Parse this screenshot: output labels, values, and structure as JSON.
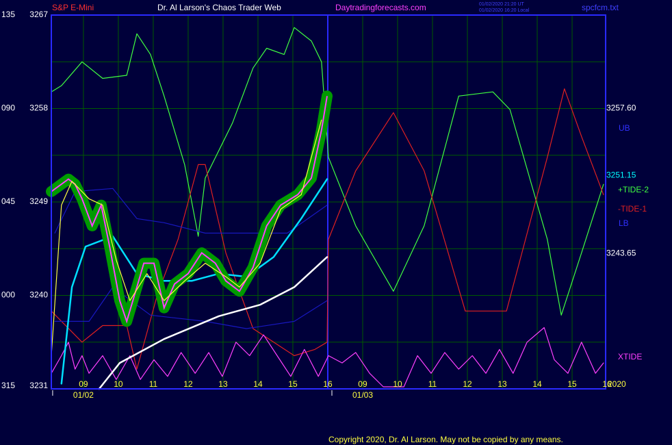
{
  "chart_data": {
    "type": "line",
    "symbol": "S&P E-Mini",
    "title": "Dr. Al Larson's Chaos Trader Web",
    "website": "Daytradingforecasts.com",
    "timestamps": [
      "01/02/2020 21:20 UT",
      "01/02/2020 16:20 Local"
    ],
    "file": "spcfcm.txt",
    "copyright": "Copyright 2020, Dr. Al Larson. May not be copied by any means.",
    "year_label": "2020",
    "xlim": [
      0.08,
      15.96
    ],
    "xticks": [
      {
        "value": 1,
        "label": "09"
      },
      {
        "value": 2,
        "label": "10"
      },
      {
        "value": 3,
        "label": "11"
      },
      {
        "value": 4,
        "label": "12"
      },
      {
        "value": 5,
        "label": "13"
      },
      {
        "value": 6,
        "label": "14"
      },
      {
        "value": 7,
        "label": "15"
      },
      {
        "value": 8,
        "label": "16"
      },
      {
        "value": 9,
        "label": "09"
      },
      {
        "value": 10,
        "label": "10"
      },
      {
        "value": 11,
        "label": "11"
      },
      {
        "value": 12,
        "label": "12"
      },
      {
        "value": 13,
        "label": "13"
      },
      {
        "value": 14,
        "label": "14"
      },
      {
        "value": 15,
        "label": "15"
      },
      {
        "value": 16,
        "label": "16"
      }
    ],
    "date_labels": [
      {
        "value": 1,
        "label": "01/02"
      },
      {
        "value": 9,
        "label": "01/03"
      }
    ],
    "day_break": 8,
    "ylim": [
      3231,
      3267
    ],
    "yticks": [
      3231,
      3240,
      3249,
      3258,
      3267
    ],
    "minor_yticks": [
      3235.5,
      3244.5,
      3253.5,
      3262.5
    ],
    "y2lim": [
      -45,
      135
    ],
    "y2ticks": [
      {
        "value": -45,
        "label": "315"
      },
      {
        "value": 0,
        "label": "000"
      },
      {
        "value": 45,
        "label": "045"
      },
      {
        "value": 90,
        "label": "090"
      },
      135
    ],
    "grid": true,
    "right_values": [
      {
        "value": 3257.6,
        "label": "3257.60",
        "color": "#ffffff"
      },
      {
        "value": 3251.15,
        "label": "3251.15",
        "color": "#00ffff"
      },
      {
        "value": 3243.65,
        "label": "3243.65",
        "color": "#ffffff"
      }
    ],
    "series": [
      {
        "name": "+TIDE-2",
        "color": "#40ff40",
        "x": [
          0.08,
          0.37,
          0.96,
          1.55,
          2.24,
          2.53,
          2.92,
          3.31,
          3.9,
          4.29,
          4.49,
          5.27,
          5.86,
          6.25,
          6.75,
          7.04,
          7.53,
          7.82,
          8.02,
          8.8,
          9.88,
          10.76,
          11.75,
          12.73,
          13.22,
          14.29,
          14.69,
          15.27,
          15.9
        ],
        "values": [
          3259.6,
          3260.2,
          3262.5,
          3260.9,
          3261.2,
          3265.2,
          3263.2,
          3259.2,
          3252.6,
          3245.7,
          3251.3,
          3256.6,
          3261.9,
          3263.8,
          3263.2,
          3265.8,
          3264.5,
          3262.5,
          3253.3,
          3246.7,
          3240.4,
          3246.7,
          3259.2,
          3259.6,
          3257.9,
          3245.4,
          3238.1,
          3244.1,
          3250.7
        ]
      },
      {
        "name": "-TIDE-1",
        "color": "#e02020",
        "x": [
          0.08,
          0.96,
          1.55,
          2.24,
          2.53,
          3.12,
          3.71,
          4.29,
          4.49,
          5.08,
          5.86,
          6.45,
          7.04,
          7.63,
          7.98,
          8.02,
          8.8,
          9.88,
          10.76,
          11.94,
          13.12,
          14.29,
          14.78,
          15.27,
          15.9
        ],
        "values": [
          3238.5,
          3235.5,
          3237.1,
          3237.1,
          3232.9,
          3240.1,
          3245.4,
          3252.6,
          3252.6,
          3244.1,
          3236.8,
          3235.5,
          3234.2,
          3234.8,
          3235.5,
          3245.4,
          3252.0,
          3257.6,
          3252.0,
          3238.5,
          3238.5,
          3253.3,
          3259.9,
          3255.3,
          3249.7
        ]
      },
      {
        "name": "XTIDE",
        "color": "#ff40ff",
        "x": [
          0.08,
          0.37,
          0.57,
          0.76,
          0.96,
          1.16,
          1.55,
          1.94,
          2.33,
          2.63,
          3.02,
          3.41,
          3.8,
          4.2,
          4.59,
          4.98,
          5.37,
          5.76,
          6.16,
          6.55,
          6.94,
          7.33,
          7.73,
          8.02,
          8.41,
          8.8,
          9.2,
          9.59,
          10.18,
          10.57,
          10.96,
          11.35,
          11.75,
          12.14,
          12.53,
          12.92,
          13.31,
          13.71,
          14.2,
          14.49,
          14.88,
          15.27,
          15.67,
          15.9
        ],
        "values": [
          3232.5,
          3234.2,
          3235.5,
          3232.9,
          3234.2,
          3232.5,
          3234.2,
          3231.9,
          3234.2,
          3231.9,
          3233.8,
          3232.2,
          3234.5,
          3232.5,
          3234.5,
          3232.2,
          3235.5,
          3234.2,
          3236.2,
          3234.2,
          3232.2,
          3234.8,
          3232.2,
          3234.2,
          3233.5,
          3234.5,
          3232.5,
          3231.2,
          3231.2,
          3234.2,
          3232.5,
          3234.5,
          3232.9,
          3234.2,
          3232.5,
          3234.8,
          3232.5,
          3235.5,
          3236.9,
          3233.8,
          3232.5,
          3235.5,
          3232.5,
          3233.5
        ]
      },
      {
        "name": "UB",
        "color": "#1818c0",
        "x": [
          0.18,
          0.76,
          1.84,
          2.53,
          3.31,
          4.49,
          5.67,
          6.84,
          7.98
        ],
        "values": [
          3246.0,
          3250.0,
          3250.3,
          3247.4,
          3247.0,
          3246.0,
          3246.0,
          3246.0,
          3248.7
        ]
      },
      {
        "name": "LB",
        "color": "#1818c0",
        "x": [
          0.18,
          1.16,
          1.84,
          2.92,
          4.49,
          5.67,
          7.04,
          7.98
        ],
        "values": [
          3237.5,
          3237.5,
          3240.8,
          3238.1,
          3237.5,
          3236.8,
          3237.5,
          3239.5
        ]
      },
      {
        "color": "#ffffff",
        "x": [
          1.45,
          2.04,
          3.31,
          4.88,
          6.06,
          7.04,
          7.98
        ],
        "values": [
          3231.0,
          3233.5,
          3235.8,
          3238.0,
          3239.1,
          3240.8,
          3243.7
        ]
      },
      {
        "color": "#00e0ff",
        "x": [
          0.37,
          0.67,
          1.06,
          1.84,
          2.53,
          3.31,
          4.1,
          4.88,
          5.67,
          6.45,
          7.24,
          7.98
        ],
        "values": [
          3231.5,
          3240.8,
          3244.7,
          3245.7,
          3242.1,
          3241.4,
          3241.4,
          3242.1,
          3241.8,
          3243.7,
          3247.4,
          3251.2
        ]
      },
      {
        "color": "#009a00",
        "x": [
          0.08,
          0.57,
          0.76,
          0.96,
          1.25,
          1.51,
          1.75,
          2.04,
          2.24,
          2.53,
          2.73,
          3.02,
          3.31,
          3.61,
          4.0,
          4.39,
          4.78,
          5.08,
          5.47,
          5.86,
          6.25,
          6.65,
          7.14,
          7.53,
          7.82,
          7.98
        ],
        "values": [
          3250.0,
          3251.2,
          3250.7,
          3249.3,
          3246.7,
          3248.7,
          3244.7,
          3239.5,
          3237.5,
          3240.8,
          3243.1,
          3243.1,
          3238.8,
          3241.1,
          3242.1,
          3244.1,
          3243.1,
          3241.4,
          3240.4,
          3242.7,
          3246.7,
          3248.7,
          3249.7,
          3251.3,
          3255.9,
          3259.2
        ]
      },
      {
        "color": "#ffff40",
        "x": [
          0.08,
          0.37,
          0.67,
          1.16,
          1.55,
          1.94,
          2.33,
          2.82,
          3.31,
          3.9,
          4.49,
          5.08,
          5.47,
          6.06,
          6.65,
          7.24,
          7.82
        ],
        "values": [
          3234.2,
          3248.7,
          3251.0,
          3249.3,
          3248.7,
          3243.4,
          3239.5,
          3242.1,
          3239.5,
          3241.4,
          3243.1,
          3241.8,
          3240.8,
          3243.1,
          3248.3,
          3249.7,
          3256.9
        ]
      }
    ]
  }
}
